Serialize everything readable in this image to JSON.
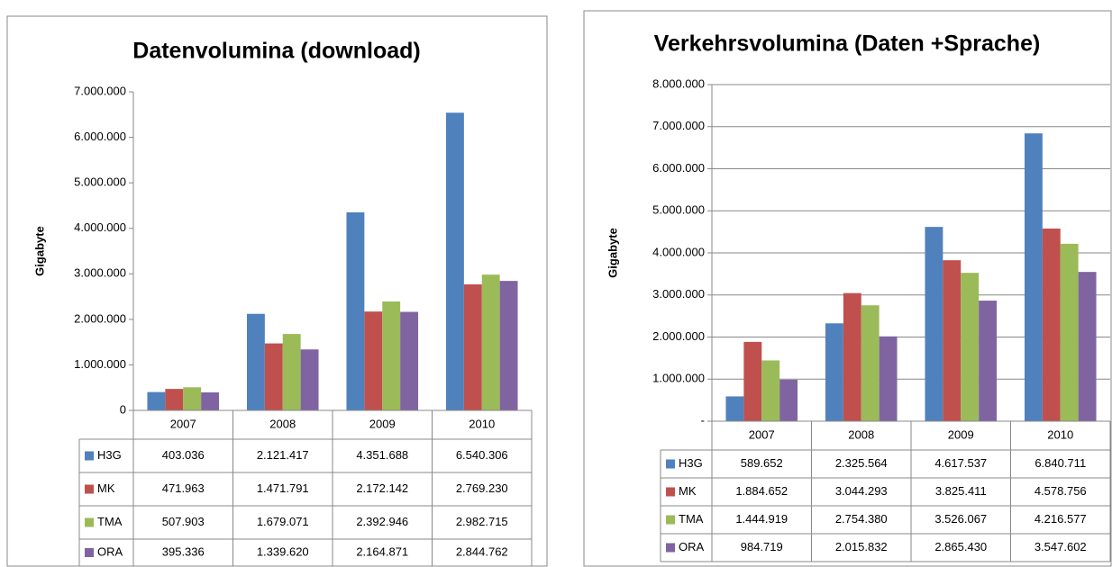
{
  "chart_data": [
    {
      "type": "bar",
      "title": "Datenvolumina  (download)",
      "ylabel": "Gigabyte",
      "categories": [
        "2007",
        "2008",
        "2009",
        "2010"
      ],
      "series": [
        {
          "name": "H3G",
          "color": "#4f81bd",
          "values": [
            403036,
            2121417,
            4351688,
            6540306
          ],
          "value_labels": [
            "403.036",
            "2.121.417",
            "4.351.688",
            "6.540.306"
          ]
        },
        {
          "name": "MK",
          "color": "#c0504d",
          "values": [
            471963,
            1471791,
            2172142,
            2769230
          ],
          "value_labels": [
            "471.963",
            "1.471.791",
            "2.172.142",
            "2.769.230"
          ]
        },
        {
          "name": "TMA",
          "color": "#9bbb59",
          "values": [
            507903,
            1679071,
            2392946,
            2982715
          ],
          "value_labels": [
            "507.903",
            "1.679.071",
            "2.392.946",
            "2.982.715"
          ]
        },
        {
          "name": "ORA",
          "color": "#8064a2",
          "values": [
            395336,
            1339620,
            2164871,
            2844762
          ],
          "value_labels": [
            "395.336",
            "1.339.620",
            "2.164.871",
            "2.844.762"
          ]
        }
      ],
      "ylim": [
        0,
        7000000
      ],
      "yticks": [
        0,
        {
          "value": 1000000,
          "label": "1.000.000"
        },
        {
          "value": 2000000,
          "label": "2.000.000"
        },
        {
          "value": 3000000,
          "label": "3.000.000"
        },
        {
          "value": 4000000,
          "label": "4.000.000"
        },
        {
          "value": 5000000,
          "label": "5.000.000"
        },
        {
          "value": 6000000,
          "label": "6.000.000"
        },
        {
          "value": 7000000,
          "label": "7.000.000"
        }
      ],
      "grid": false
    },
    {
      "type": "bar",
      "title": "Verkehrsvolumina (Daten +Sprache)",
      "ylabel": "Gigabyte",
      "categories": [
        "2007",
        "2008",
        "2009",
        "2010"
      ],
      "series": [
        {
          "name": "H3G",
          "color": "#4f81bd",
          "values": [
            589652,
            2325564,
            4617537,
            6840711
          ],
          "value_labels": [
            "589.652",
            "2.325.564",
            "4.617.537",
            "6.840.711"
          ]
        },
        {
          "name": "MK",
          "color": "#c0504d",
          "values": [
            1884652,
            3044293,
            3825411,
            4578756
          ],
          "value_labels": [
            "1.884.652",
            "3.044.293",
            "3.825.411",
            "4.578.756"
          ]
        },
        {
          "name": "TMA",
          "color": "#9bbb59",
          "values": [
            1444919,
            2754380,
            3526067,
            4216577
          ],
          "value_labels": [
            "1.444.919",
            "2.754.380",
            "3.526.067",
            "4.216.577"
          ]
        },
        {
          "name": "ORA",
          "color": "#8064a2",
          "values": [
            984719,
            2015832,
            2865430,
            3547602
          ],
          "value_labels": [
            "984.719",
            "2.015.832",
            "2.865.430",
            "3.547.602"
          ]
        }
      ],
      "ylim": [
        0,
        8000000
      ],
      "yticks": [
        {
          "value": 0,
          "label": "-"
        },
        {
          "value": 1000000,
          "label": "1.000.000"
        },
        {
          "value": 2000000,
          "label": "2.000.000"
        },
        {
          "value": 3000000,
          "label": "3.000.000"
        },
        {
          "value": 4000000,
          "label": "4.000.000"
        },
        {
          "value": 5000000,
          "label": "5.000.000"
        },
        {
          "value": 6000000,
          "label": "6.000.000"
        },
        {
          "value": 7000000,
          "label": "7.000.000"
        },
        {
          "value": 8000000,
          "label": "8.000.000"
        }
      ],
      "grid": true
    }
  ]
}
